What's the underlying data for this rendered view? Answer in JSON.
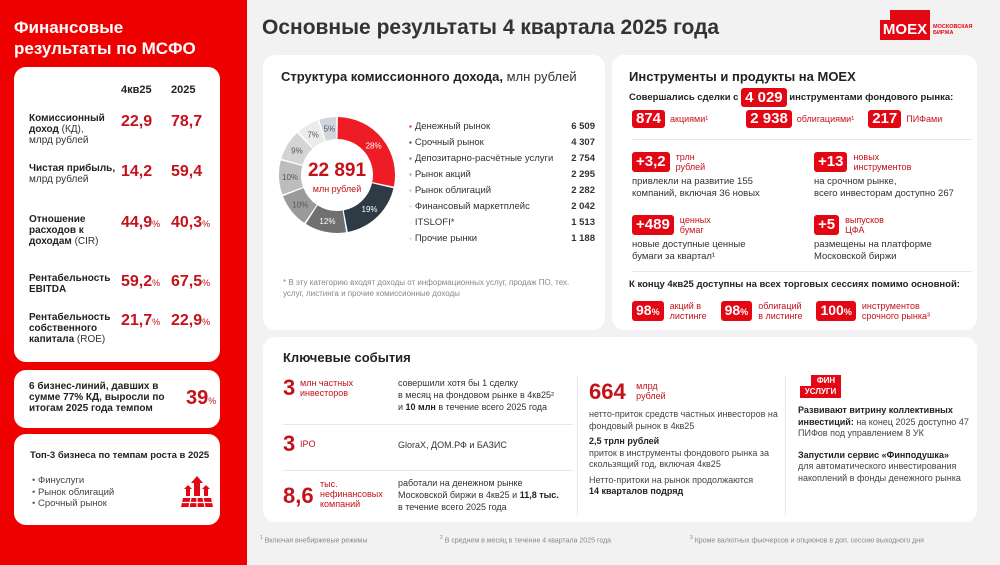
{
  "sidebar": {
    "title_line1": "Финансовые",
    "title_line2": "результаты по МСФО",
    "columns": [
      "4кв25",
      "2025"
    ],
    "metrics": [
      {
        "label_bold": "Комиссионный доход",
        "label_rest": " (КД),",
        "label_sub": "млрд рублей",
        "q4": "22,9",
        "year": "78,7",
        "pct": false
      },
      {
        "label_bold": "Чистая прибыль,",
        "label_rest": "",
        "label_sub": "млрд рублей",
        "q4": "14,2",
        "year": "59,4",
        "pct": false
      },
      {
        "label_bold": "Отношение расходов к доходам",
        "label_rest": " (CIR)",
        "label_sub": "",
        "q4": "44,9",
        "year": "40,3",
        "pct": true
      },
      {
        "label_bold": "Рентабельность EBITDA",
        "label_rest": "",
        "label_sub": "",
        "q4": "59,2",
        "year": "67,5",
        "pct": true
      },
      {
        "label_bold": "Рентабельность собственного капитала",
        "label_rest": " (ROE)",
        "label_sub": "",
        "q4": "21,7",
        "year": "22,9",
        "pct": true
      }
    ],
    "pct_sign": "%",
    "business_lines": {
      "text": "6 бизнес-линий, давших в сумме 77% КД, выросли по итогам 2025 года темпом",
      "value": "39",
      "unit": "%"
    },
    "top3": {
      "title": "Топ-3 бизнеса по темпам роста в 2025",
      "items": [
        "Финуслуги",
        "Рынок облигаций",
        "Срочный рынок"
      ]
    }
  },
  "header": {
    "title": "Основные результаты 4 квартала 2025 года",
    "logo_text": "MOEX",
    "logo_sub1": "МОСКОВСКАЯ",
    "logo_sub2": "БИРЖА"
  },
  "structure": {
    "title_bold": "Структура комиссионного дохода,",
    "title_rest": " млн рублей",
    "total": "22 891",
    "total_unit": "млн рублей",
    "note": "* В эту категорию входят доходы от информационных услуг, продаж ПО, тех. услуг, листинга и прочие комиссионные доходы",
    "legend": [
      {
        "label": "Денежный рынок",
        "value": "6 509",
        "pct": "28%",
        "color": "#ee1c25"
      },
      {
        "label": "Срочный рынок",
        "value": "4 307",
        "pct": "19%",
        "color": "#2e3a45"
      },
      {
        "label": "Депозитарно-расчётные услуги",
        "value": "2 754",
        "pct": "12%",
        "color": "#707070"
      },
      {
        "label": "Рынок акций",
        "value": "2 295",
        "pct": "10%",
        "color": "#9a9a9a"
      },
      {
        "label": "Рынок облигаций",
        "value": "2 282",
        "pct": "10%",
        "color": "#bdbdbd"
      },
      {
        "label": "Финансовый маркетплейс",
        "value": "2 042",
        "pct": "9%",
        "color": "#d4d4d4"
      },
      {
        "label": "ITSLOFI*",
        "value": "1 513",
        "pct": "7%",
        "color": "#ececec"
      },
      {
        "label": "Прочие рынки",
        "value": "1 188",
        "pct": "5%",
        "color": "#cfd6de"
      }
    ]
  },
  "instruments": {
    "title": "Инструменты и продукты на MOEX",
    "deals_pre": "Совершались сделки с",
    "deals_value": "4 029",
    "deals_post": "инструментами фондового рынка:",
    "chips": [
      {
        "value": "874",
        "label": "акциями¹"
      },
      {
        "value": "2 938",
        "label": "облигациями¹"
      },
      {
        "value": "217",
        "label": "ПИФами"
      }
    ],
    "stats": [
      {
        "value": "+3,2",
        "unit1": "трлн",
        "unit2": "рублей",
        "desc1": "привлекли на развитие 155",
        "desc2": "компаний, включая 36 новых"
      },
      {
        "value": "+13",
        "unit1": "новых",
        "unit2": "инструментов",
        "desc1": "на срочном рынке,",
        "desc2": "всего инвесторам доступно 267"
      },
      {
        "value": "+489",
        "unit1": "ценных",
        "unit2": "бумаг",
        "desc1": "новые доступные ценные",
        "desc2": "бумаги за квартал¹"
      },
      {
        "value": "+5",
        "unit1": "выпусков",
        "unit2": "ЦФА",
        "desc1": "размещены на платформе",
        "desc2": "Московской биржи"
      }
    ],
    "sessions_title": "К концу 4кв25 доступны на всех торговых сессиях помимо основной:",
    "sessions": [
      {
        "value": "98",
        "unit1": "акций в",
        "unit2": "листинге"
      },
      {
        "value": "98",
        "unit1": "облигаций",
        "unit2": "в листинге"
      },
      {
        "value": "100",
        "unit1": "инструментов",
        "unit2": "срочного рынка³"
      }
    ]
  },
  "events": {
    "title": "Ключевые события",
    "rows": [
      {
        "num": "3",
        "unit1": "млн частных",
        "unit2": "инвесторов",
        "d1": "совершили хотя бы 1 сделку",
        "d2": "в месяц на фондовом рынке в 4кв25²",
        "d3_pre": "и ",
        "d3_bold": "10 млн",
        "d3_post": " в течение всего 2025 года"
      },
      {
        "num": "3",
        "unit1": "IPO",
        "unit2": "",
        "d1": "GloraX, ДОМ.РФ и БАЗИС",
        "d2": "",
        "d3_pre": "",
        "d3_bold": "",
        "d3_post": ""
      },
      {
        "num": "8,6",
        "unit1": "тыс.",
        "unit2": "нефинансовых",
        "unit3": "компаний",
        "d1": "работали на денежном рынке",
        "d2_pre": "Московской биржи в 4кв25 и ",
        "d2_bold": "11,8 тыс.",
        "d3": "в течение всего 2025 года"
      }
    ],
    "flow": {
      "num": "664",
      "unit1": "млрд",
      "unit2": "рублей",
      "p1": "нетто-приток средств частных инвесторов на фондовый рынок в 4кв25",
      "p2_bold": "2,5 трлн рублей",
      "p2": "приток в инструменты фондового рынка за скользящий год, включая 4кв25",
      "p3": "Нетто-притоки на рынок продолжаются",
      "p3_bold": "14 кварталов подряд"
    },
    "finsvc": {
      "badge1": "ФИН",
      "badge2": "УСЛУГИ",
      "p1_bold": "Развивают витрину коллективных инвестиций:",
      "p1": " на конец 2025 доступно 47 ПИФов под управлением 8 УК",
      "p2_bold": "Запустили сервис «Финподушка»",
      "p2": "для автоматического инвестирования накоплений в фонды денежного рынка"
    }
  },
  "footnotes": [
    {
      "sup": "1",
      "text": " Включая внебиржевые режимы"
    },
    {
      "sup": "2",
      "text": " В среднем в месяц в течение 4 квартала 2025 года"
    },
    {
      "sup": "3",
      "text": " Кроме валютных фьючерсов и опционов в доп. сессию выходного дня"
    }
  ]
}
